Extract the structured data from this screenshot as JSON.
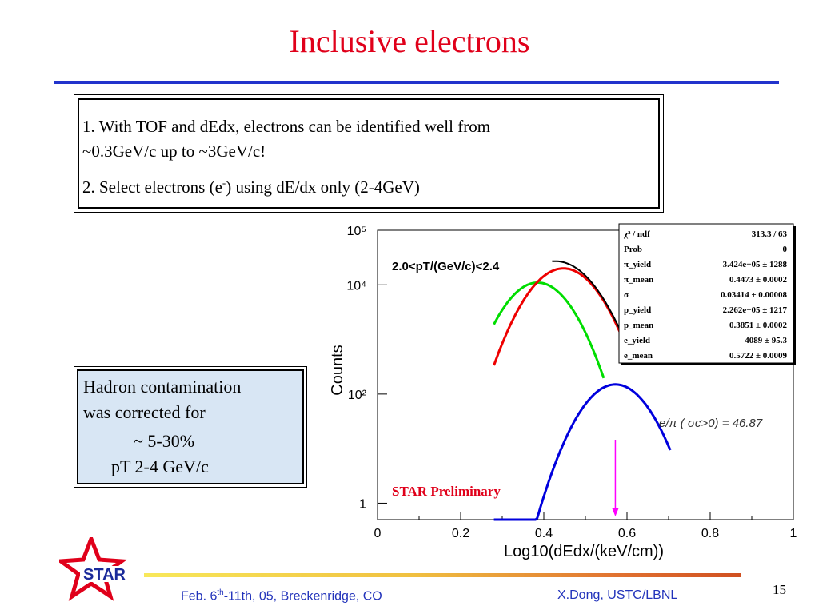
{
  "slide": {
    "title": "Inclusive electrons",
    "box1": {
      "line1": "1. With TOF and dEdx, electrons can be identified well from",
      "line1b": "~0.3GeV/c up to ~3GeV/c!",
      "line2_pre": "2. Select electrons (e",
      "line2_sup": "-",
      "line2_post": ") using  dE/dx only (2-4GeV)"
    },
    "contamination": {
      "line1": "Hadron contamination",
      "line2": "was corrected for",
      "line3": "~ 5-30%",
      "line4": "pT  2-4 GeV/c"
    },
    "footer": {
      "left_pre": "Feb. 6",
      "left_sup": "th",
      "left_post": "-11th, 05, Breckenridge, CO",
      "right": "X.Dong,  USTC/LBNL",
      "page": "15"
    },
    "logo_text": "STAR",
    "colors": {
      "title": "#e0001a",
      "rule": "#2233cc",
      "footer_text": "#2233bb",
      "box_fill": "#d8e6f4"
    }
  },
  "chart_data": {
    "type": "line",
    "xlabel": "Log10(dEdx/(keV/cm))",
    "ylabel": "Counts",
    "xlim": [
      0,
      1
    ],
    "ylim": [
      0.5,
      100000
    ],
    "yscale": "log",
    "x_ticks": [
      "0",
      "0.2",
      "0.4",
      "0.6",
      "0.8",
      "1"
    ],
    "y_ticks": [
      "1",
      "10²",
      "10⁴",
      "10⁵"
    ],
    "y_tick_values": [
      1,
      100,
      10000,
      100000
    ],
    "bin_label": "2.0<pT/(GeV/c)<2.4",
    "ratio_label": "e/π ( σc>0) = 46.87",
    "preliminary": "STAR Preliminary",
    "stats": [
      [
        "χ² / ndf",
        "313.3 / 63"
      ],
      [
        "Prob",
        "0"
      ],
      [
        "π_yield",
        "3.424e+05 ± 1288"
      ],
      [
        "π_mean",
        "0.4473 ± 0.0002"
      ],
      [
        "σ",
        "0.03414 ± 0.00008"
      ],
      [
        "p_yield",
        "2.262e+05 ± 1217"
      ],
      [
        "p_mean",
        "0.3851 ± 0.0002"
      ],
      [
        "e_yield",
        "4089 ± 95.3"
      ],
      [
        "e_mean",
        "0.5722 ± 0.0009"
      ]
    ],
    "fits": [
      {
        "name": "proton",
        "color": "#00dd00",
        "mean": 0.3851,
        "peak": 11000,
        "sigma": 0.056,
        "xmin": 0.28,
        "xmax": 0.545
      },
      {
        "name": "pion",
        "color": "#ee0000",
        "mean": 0.4473,
        "peak": 20000,
        "sigma": 0.0585,
        "xmin": 0.28,
        "xmax": 0.595
      },
      {
        "name": "electron",
        "color": "#0000dd",
        "mean": 0.5722,
        "peak": 150,
        "sigma": 0.056,
        "xmin": 0.28,
        "xmax": 0.705
      }
    ],
    "marker": {
      "x": 0.572,
      "color": "#ff00ff"
    }
  }
}
